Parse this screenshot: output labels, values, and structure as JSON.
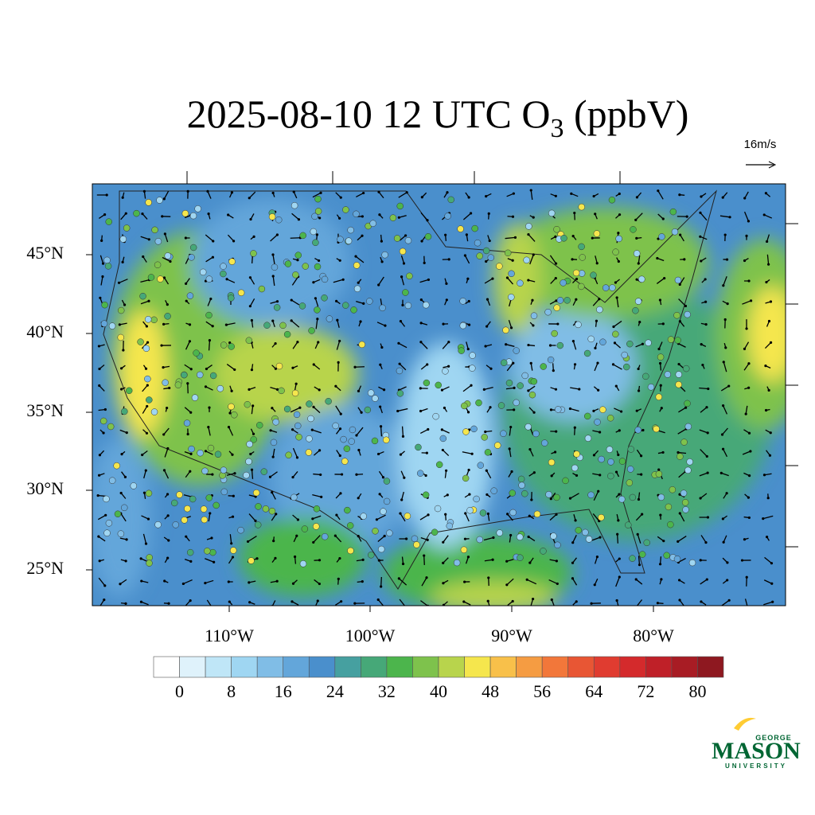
{
  "title_parts": [
    "2025-08-10 12 UTC O",
    "3",
    " (ppbV)"
  ],
  "vector_reference": "16m/s",
  "lat_labels": [
    "45°N",
    "40°N",
    "35°N",
    "30°N",
    "25°N"
  ],
  "lon_labels": [
    "110°W",
    "100°W",
    "90°W",
    "80°W"
  ],
  "colorbar": {
    "colors": [
      "#ffffff",
      "#dff2fb",
      "#bfe6f7",
      "#9fd6f2",
      "#80bde6",
      "#63a6da",
      "#4a8fcc",
      "#46a0a0",
      "#46a878",
      "#4cb54c",
      "#7ec24c",
      "#b8d44c",
      "#f5e64d",
      "#f8c04a",
      "#f59c42",
      "#f2773a",
      "#e85634",
      "#e03c30",
      "#d42a2c",
      "#bf2028",
      "#a81c24",
      "#8e1820"
    ],
    "labels": [
      0,
      8,
      16,
      24,
      32,
      40,
      48,
      56,
      64,
      72,
      80
    ]
  },
  "logo": {
    "top": "GEORGE",
    "main": "MASON",
    "bottom": "UNIVERSITY"
  }
}
